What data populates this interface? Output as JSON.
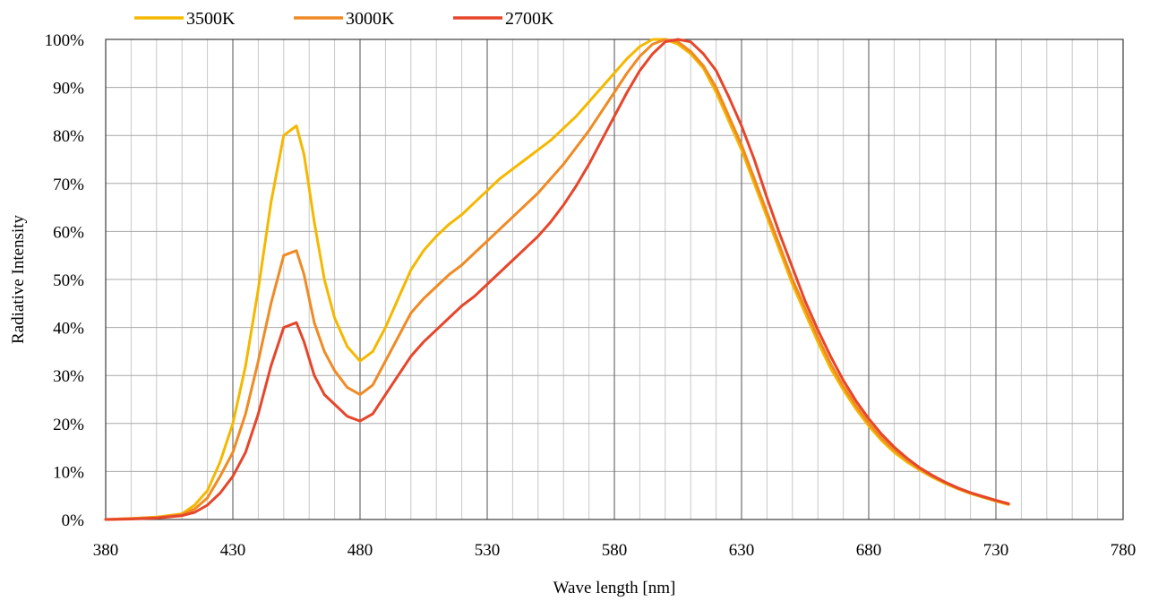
{
  "chart_data": {
    "type": "line",
    "title": "",
    "xlabel": "Wave length [nm]",
    "ylabel": "Radiative Intensity",
    "xlim": [
      380,
      780
    ],
    "ylim": [
      0,
      100
    ],
    "x_ticks": [
      380,
      430,
      480,
      530,
      580,
      630,
      680,
      730,
      780
    ],
    "x_tick_labels": [
      "380",
      "430",
      "480",
      "530",
      "580",
      "630",
      "680",
      "730",
      "780"
    ],
    "y_ticks": [
      0,
      10,
      20,
      30,
      40,
      50,
      60,
      70,
      80,
      90,
      100
    ],
    "y_tick_labels": [
      "0%",
      "10%",
      "20%",
      "30%",
      "40%",
      "50%",
      "60%",
      "70%",
      "80%",
      "90%",
      "100%"
    ],
    "grid": true,
    "legend_position": "top-left",
    "series": [
      {
        "name": "3500K",
        "color": "#f5b800",
        "points": [
          [
            380,
            0
          ],
          [
            390,
            0.2
          ],
          [
            400,
            0.5
          ],
          [
            410,
            1.2
          ],
          [
            415,
            3
          ],
          [
            420,
            6
          ],
          [
            425,
            12
          ],
          [
            430,
            20
          ],
          [
            435,
            32
          ],
          [
            440,
            48
          ],
          [
            445,
            66
          ],
          [
            450,
            80
          ],
          [
            455,
            82
          ],
          [
            458,
            76
          ],
          [
            462,
            62
          ],
          [
            466,
            50
          ],
          [
            470,
            42
          ],
          [
            475,
            36
          ],
          [
            480,
            33
          ],
          [
            485,
            35
          ],
          [
            490,
            40
          ],
          [
            495,
            46
          ],
          [
            500,
            52
          ],
          [
            505,
            56
          ],
          [
            510,
            59
          ],
          [
            515,
            61.5
          ],
          [
            520,
            63.5
          ],
          [
            525,
            66
          ],
          [
            530,
            68.5
          ],
          [
            535,
            71
          ],
          [
            540,
            73
          ],
          [
            545,
            75
          ],
          [
            550,
            77
          ],
          [
            555,
            79
          ],
          [
            560,
            81.5
          ],
          [
            565,
            84
          ],
          [
            570,
            87
          ],
          [
            575,
            90
          ],
          [
            580,
            93
          ],
          [
            585,
            96
          ],
          [
            590,
            98.5
          ],
          [
            595,
            100
          ],
          [
            600,
            100
          ],
          [
            605,
            99
          ],
          [
            610,
            97
          ],
          [
            615,
            94
          ],
          [
            620,
            89
          ],
          [
            625,
            83
          ],
          [
            630,
            77
          ],
          [
            635,
            70
          ],
          [
            640,
            63
          ],
          [
            645,
            56
          ],
          [
            650,
            49
          ],
          [
            655,
            43
          ],
          [
            660,
            37
          ],
          [
            665,
            31.5
          ],
          [
            670,
            27
          ],
          [
            675,
            23
          ],
          [
            680,
            19.5
          ],
          [
            685,
            16.5
          ],
          [
            690,
            14
          ],
          [
            695,
            12
          ],
          [
            700,
            10.3
          ],
          [
            705,
            8.8
          ],
          [
            710,
            7.5
          ],
          [
            715,
            6.4
          ],
          [
            720,
            5.4
          ],
          [
            725,
            4.6
          ],
          [
            730,
            3.8
          ],
          [
            735,
            3.1
          ]
        ]
      },
      {
        "name": "3000K",
        "color": "#f08a24",
        "points": [
          [
            380,
            0
          ],
          [
            390,
            0.2
          ],
          [
            400,
            0.4
          ],
          [
            410,
            1
          ],
          [
            415,
            2.2
          ],
          [
            420,
            4.5
          ],
          [
            425,
            9
          ],
          [
            430,
            14
          ],
          [
            435,
            22
          ],
          [
            440,
            33
          ],
          [
            445,
            45
          ],
          [
            450,
            55
          ],
          [
            455,
            56
          ],
          [
            458,
            51
          ],
          [
            462,
            41
          ],
          [
            466,
            35
          ],
          [
            470,
            31
          ],
          [
            475,
            27.5
          ],
          [
            480,
            26
          ],
          [
            485,
            28
          ],
          [
            490,
            33
          ],
          [
            495,
            38
          ],
          [
            500,
            43
          ],
          [
            505,
            46
          ],
          [
            510,
            48.5
          ],
          [
            515,
            51
          ],
          [
            520,
            53
          ],
          [
            525,
            55.5
          ],
          [
            530,
            58
          ],
          [
            535,
            60.5
          ],
          [
            540,
            63
          ],
          [
            545,
            65.5
          ],
          [
            550,
            68
          ],
          [
            555,
            71
          ],
          [
            560,
            74
          ],
          [
            565,
            77.5
          ],
          [
            570,
            81
          ],
          [
            575,
            85
          ],
          [
            580,
            89
          ],
          [
            585,
            93
          ],
          [
            590,
            96.5
          ],
          [
            595,
            99
          ],
          [
            600,
            100
          ],
          [
            605,
            99.5
          ],
          [
            610,
            97.5
          ],
          [
            615,
            94.5
          ],
          [
            620,
            90
          ],
          [
            625,
            84
          ],
          [
            630,
            78
          ],
          [
            635,
            71
          ],
          [
            640,
            64
          ],
          [
            645,
            57
          ],
          [
            650,
            50
          ],
          [
            655,
            44
          ],
          [
            660,
            38
          ],
          [
            665,
            32.5
          ],
          [
            670,
            27.8
          ],
          [
            675,
            23.7
          ],
          [
            680,
            20.1
          ],
          [
            685,
            17
          ],
          [
            690,
            14.5
          ],
          [
            695,
            12.4
          ],
          [
            700,
            10.6
          ],
          [
            705,
            9
          ],
          [
            710,
            7.7
          ],
          [
            715,
            6.5
          ],
          [
            720,
            5.5
          ],
          [
            725,
            4.7
          ],
          [
            730,
            3.9
          ],
          [
            735,
            3.2
          ]
        ]
      },
      {
        "name": "2700K",
        "color": "#e6462a",
        "points": [
          [
            380,
            0
          ],
          [
            390,
            0.1
          ],
          [
            400,
            0.3
          ],
          [
            410,
            0.8
          ],
          [
            415,
            1.5
          ],
          [
            420,
            3
          ],
          [
            425,
            5.5
          ],
          [
            430,
            9
          ],
          [
            435,
            14
          ],
          [
            440,
            22
          ],
          [
            445,
            32
          ],
          [
            450,
            40
          ],
          [
            455,
            41
          ],
          [
            458,
            37
          ],
          [
            462,
            30
          ],
          [
            466,
            26
          ],
          [
            470,
            24
          ],
          [
            475,
            21.5
          ],
          [
            480,
            20.5
          ],
          [
            485,
            22
          ],
          [
            490,
            26
          ],
          [
            495,
            30
          ],
          [
            500,
            34
          ],
          [
            505,
            37
          ],
          [
            510,
            39.5
          ],
          [
            515,
            42
          ],
          [
            520,
            44.5
          ],
          [
            525,
            46.5
          ],
          [
            530,
            49
          ],
          [
            535,
            51.5
          ],
          [
            540,
            54
          ],
          [
            545,
            56.5
          ],
          [
            550,
            59
          ],
          [
            555,
            62
          ],
          [
            560,
            65.5
          ],
          [
            565,
            69.5
          ],
          [
            570,
            74
          ],
          [
            575,
            79
          ],
          [
            580,
            84
          ],
          [
            585,
            89
          ],
          [
            590,
            93.5
          ],
          [
            595,
            97
          ],
          [
            600,
            99.5
          ],
          [
            605,
            100
          ],
          [
            610,
            99.5
          ],
          [
            615,
            97
          ],
          [
            620,
            93.5
          ],
          [
            625,
            88
          ],
          [
            630,
            82
          ],
          [
            635,
            75
          ],
          [
            640,
            67
          ],
          [
            645,
            59.5
          ],
          [
            650,
            52.5
          ],
          [
            655,
            45.5
          ],
          [
            660,
            39.5
          ],
          [
            665,
            34
          ],
          [
            670,
            29
          ],
          [
            675,
            24.7
          ],
          [
            680,
            21
          ],
          [
            685,
            17.8
          ],
          [
            690,
            15.1
          ],
          [
            695,
            12.8
          ],
          [
            700,
            10.8
          ],
          [
            705,
            9.2
          ],
          [
            710,
            7.8
          ],
          [
            715,
            6.6
          ],
          [
            720,
            5.6
          ],
          [
            725,
            4.8
          ],
          [
            730,
            4
          ],
          [
            735,
            3.3
          ]
        ]
      }
    ]
  }
}
